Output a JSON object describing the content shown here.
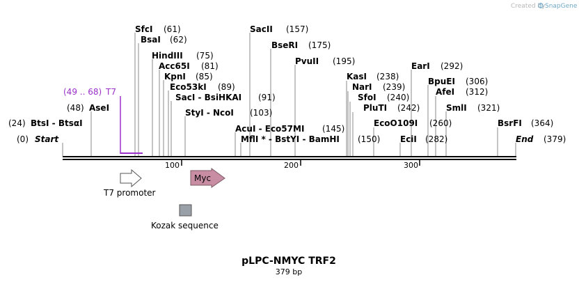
{
  "credit": {
    "text": "Created by",
    "brand": "SnapGene"
  },
  "plasmid": {
    "name": "pLPC-NMYC TRF2",
    "size_label": "379 bp"
  },
  "sites": [
    {
      "name": "SfcI",
      "pos": "(61)"
    },
    {
      "name": "BsaI",
      "pos": "(62)"
    },
    {
      "name": "HindIII",
      "pos": "(75)"
    },
    {
      "name": "Acc65I",
      "pos": "(81)"
    },
    {
      "name": "KpnI",
      "pos": "(85)"
    },
    {
      "name": "Eco53kI",
      "pos": "(89)"
    },
    {
      "name": "SacI - BsiHKAI",
      "pos": "(91)"
    },
    {
      "name": "StyI - NcoI",
      "pos": "(103)"
    },
    {
      "name": "SacII",
      "pos": "(157)"
    },
    {
      "name": "BseRI",
      "pos": "(175)"
    },
    {
      "name": "PvuII",
      "pos": "(195)"
    },
    {
      "name": "AcuI - Eco57MI",
      "pos": "(145)"
    },
    {
      "name": "MflI * - BstYI - BamHI",
      "pos": "(150)"
    },
    {
      "name": "KasI",
      "pos": "(238)"
    },
    {
      "name": "NarI",
      "pos": "(239)"
    },
    {
      "name": "SfoI",
      "pos": "(240)"
    },
    {
      "name": "PluTI",
      "pos": "(242)"
    },
    {
      "name": "EcoO109I",
      "pos": "(260)"
    },
    {
      "name": "EciI",
      "pos": "(282)"
    },
    {
      "name": "EarI",
      "pos": "(292)"
    },
    {
      "name": "BpuEI",
      "pos": "(306)"
    },
    {
      "name": "AfeI",
      "pos": "(312)"
    },
    {
      "name": "SmlI",
      "pos": "(321)"
    },
    {
      "name": "BsrFI",
      "pos": "(364)"
    },
    {
      "name": "AseI",
      "pos": "(48)"
    },
    {
      "name": "BtsI - BtsαI",
      "pos": "(24)"
    }
  ],
  "ends": {
    "start_label": "Start",
    "start_pos": "(0)",
    "end_label": "End",
    "end_pos": "(379)"
  },
  "primer": {
    "name": "T7",
    "range": "(49 .. 68)"
  },
  "ruler": {
    "ticks": [
      100,
      200,
      300
    ]
  },
  "features": {
    "t7_promoter": "T7 promoter",
    "myc": "Myc",
    "kozak": "Kozak sequence"
  },
  "colors": {
    "t7_primer": "#9b30c8",
    "myc_fill": "#c98da3",
    "kozak_fill": "#9aa0a8",
    "credit_text": "#b8b8b8",
    "brand_logo": "#6fa8c8"
  }
}
